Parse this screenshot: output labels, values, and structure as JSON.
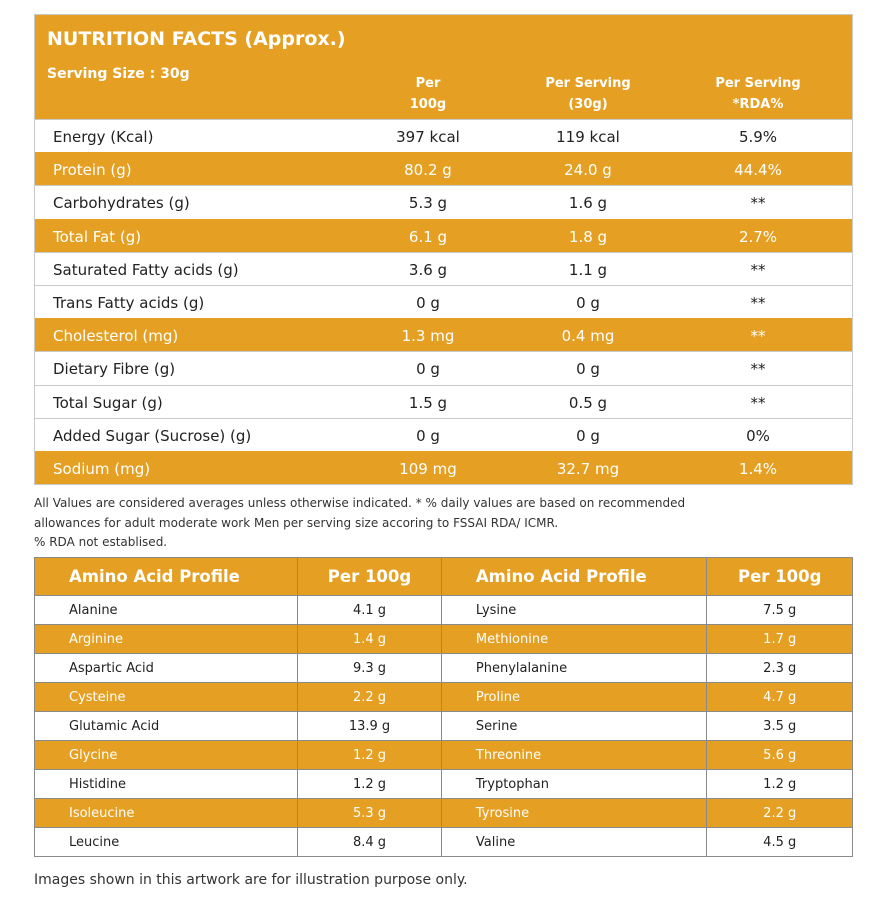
{
  "nutrition": {
    "title": "NUTRITION FACTS (Approx.)",
    "serving_size": "Serving Size : 30g",
    "columns": [
      {
        "line1": "Per",
        "line2": "100g"
      },
      {
        "line1": "Per Serving",
        "line2": "(30g)"
      },
      {
        "line1": "Per Serving",
        "line2": "*RDA%"
      }
    ],
    "rows": [
      {
        "label": "Energy (Kcal)",
        "per100": "397 kcal",
        "serving": "119 kcal",
        "rda": "5.9%"
      },
      {
        "label": "Protein (g)",
        "per100": "80.2 g",
        "serving": "24.0 g",
        "rda": "44.4%"
      },
      {
        "label": "Carbohydrates (g)",
        "per100": "5.3 g",
        "serving": "1.6 g",
        "rda": "**"
      },
      {
        "label": "Total Fat (g)",
        "per100": "6.1 g",
        "serving": "1.8 g",
        "rda": "2.7%"
      },
      {
        "label": "Saturated Fatty acids (g)",
        "per100": "3.6 g",
        "serving": "1.1 g",
        "rda": "**"
      },
      {
        "label": "Trans Fatty acids (g)",
        "per100": "0 g",
        "serving": "0 g",
        "rda": "**"
      },
      {
        "label": "Cholesterol (mg)",
        "per100": "1.3 mg",
        "serving": "0.4 mg",
        "rda": "**"
      },
      {
        "label": "Dietary Fibre (g)",
        "per100": "0 g",
        "serving": "0 g",
        "rda": "**"
      },
      {
        "label": "Total Sugar (g)",
        "per100": "1.5 g",
        "serving": "0.5 g",
        "rda": "**"
      },
      {
        "label": "Added Sugar (Sucrose) (g)",
        "per100": "0 g",
        "serving": "0 g",
        "rda": "0%"
      },
      {
        "label": "Sodium (mg)",
        "per100": "109 mg",
        "serving": "32.7 mg",
        "rda": "1.4%"
      }
    ]
  },
  "notes": [
    "All Values are considered averages unless otherwise indicated. * % daily values are based on recommended",
    "allowances for adult moderate work Men per serving size accoring to FSSAI RDA/ ICMR.",
    "% RDA not establised."
  ],
  "amino": {
    "headers": [
      "Amino Acid Profile",
      "Per 100g",
      "Amino Acid Profile",
      "Per 100g"
    ],
    "rows": [
      [
        "Alanine",
        "4.1 g",
        "Lysine",
        "7.5 g"
      ],
      [
        "Arginine",
        "1.4 g",
        "Methionine",
        "1.7 g"
      ],
      [
        "Aspartic Acid",
        "9.3 g",
        "Phenylalanine",
        "2.3 g"
      ],
      [
        "Cysteine",
        "2.2 g",
        "Proline",
        "4.7 g"
      ],
      [
        "Glutamic Acid",
        "13.9 g",
        "Serine",
        "3.5 g"
      ],
      [
        "Glycine",
        "1.2 g",
        "Threonine",
        "5.6 g"
      ],
      [
        "Histidine",
        "1.2 g",
        "Tryptophan",
        "1.2 g"
      ],
      [
        "Isoleucine",
        "5.3 g",
        "Tyrosine",
        "2.2 g"
      ],
      [
        "Leucine",
        "8.4 g",
        "Valine",
        "4.5 g"
      ]
    ]
  },
  "footer": "Images shown in this artwork are for illustration purpose only.",
  "colors": {
    "accent": "#E5A023",
    "border": "#8a8a8a"
  }
}
